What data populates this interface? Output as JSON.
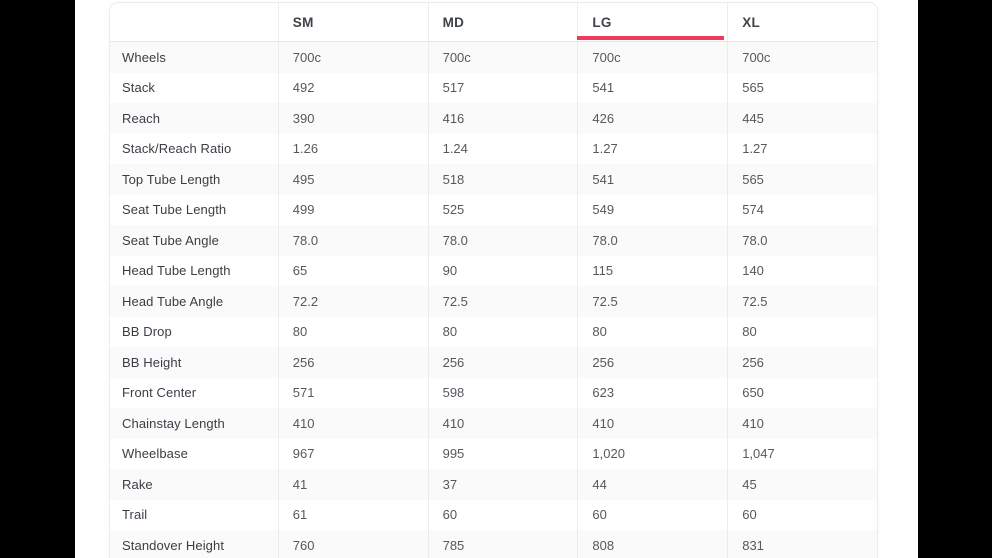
{
  "table": {
    "accent_color": "#ee3a5c",
    "columns": [
      {
        "label": "SM",
        "selected": false
      },
      {
        "label": "MD",
        "selected": false
      },
      {
        "label": "LG",
        "selected": true
      },
      {
        "label": "XL",
        "selected": false
      }
    ],
    "rows": [
      {
        "label": "Wheels",
        "values": [
          "700c",
          "700c",
          "700c",
          "700c"
        ]
      },
      {
        "label": "Stack",
        "values": [
          "492",
          "517",
          "541",
          "565"
        ]
      },
      {
        "label": "Reach",
        "values": [
          "390",
          "416",
          "426",
          "445"
        ]
      },
      {
        "label": "Stack/Reach Ratio",
        "values": [
          "1.26",
          "1.24",
          "1.27",
          "1.27"
        ]
      },
      {
        "label": "Top Tube Length",
        "values": [
          "495",
          "518",
          "541",
          "565"
        ]
      },
      {
        "label": "Seat Tube Length",
        "values": [
          "499",
          "525",
          "549",
          "574"
        ]
      },
      {
        "label": "Seat Tube Angle",
        "values": [
          "78.0",
          "78.0",
          "78.0",
          "78.0"
        ]
      },
      {
        "label": "Head Tube Length",
        "values": [
          "65",
          "90",
          "115",
          "140"
        ]
      },
      {
        "label": "Head Tube Angle",
        "values": [
          "72.2",
          "72.5",
          "72.5",
          "72.5"
        ]
      },
      {
        "label": "BB Drop",
        "values": [
          "80",
          "80",
          "80",
          "80"
        ]
      },
      {
        "label": "BB Height",
        "values": [
          "256",
          "256",
          "256",
          "256"
        ]
      },
      {
        "label": "Front Center",
        "values": [
          "571",
          "598",
          "623",
          "650"
        ]
      },
      {
        "label": "Chainstay Length",
        "values": [
          "410",
          "410",
          "410",
          "410"
        ]
      },
      {
        "label": "Wheelbase",
        "values": [
          "967",
          "995",
          "1,020",
          "1,047"
        ]
      },
      {
        "label": "Rake",
        "values": [
          "41",
          "37",
          "44",
          "45"
        ]
      },
      {
        "label": "Trail",
        "values": [
          "61",
          "60",
          "60",
          "60"
        ]
      },
      {
        "label": "Standover Height",
        "values": [
          "760",
          "785",
          "808",
          "831"
        ]
      }
    ]
  }
}
